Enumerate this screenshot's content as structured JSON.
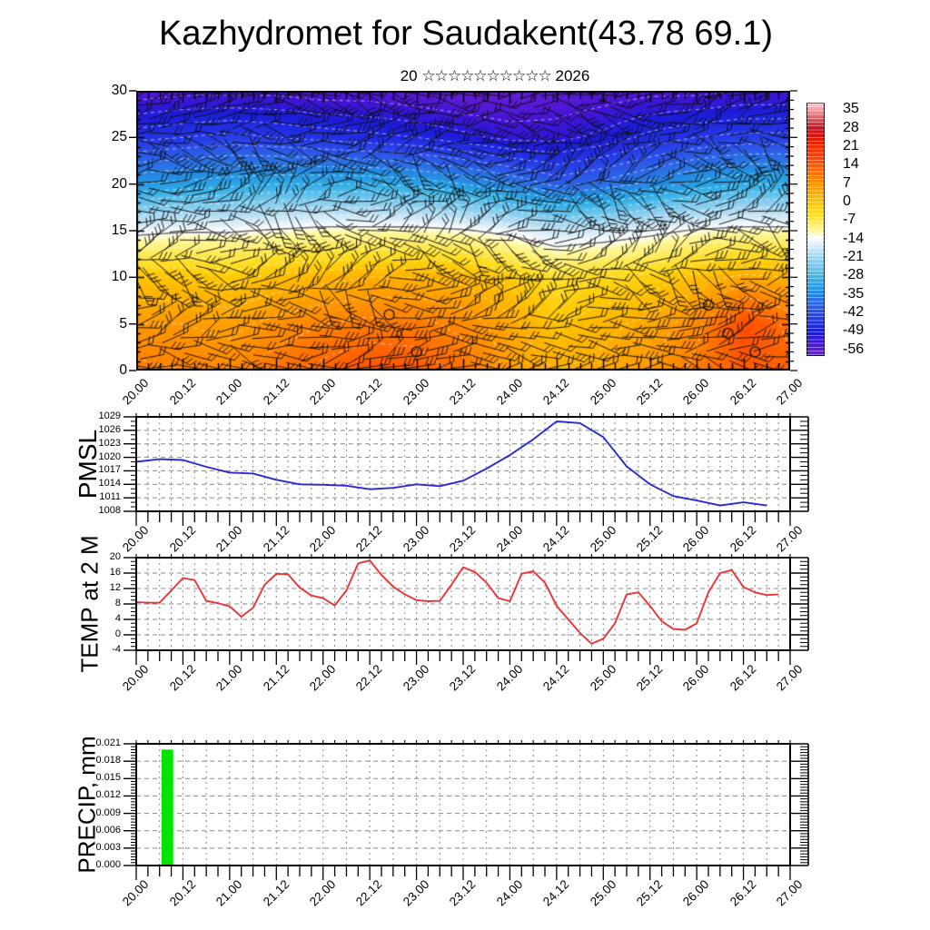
{
  "title": "Kazhydromet for Saudakent(43.78 69.1)",
  "subtitle": {
    "day": "20",
    "month_glyphs": "☆☆☆☆☆☆☆☆☆☆",
    "year": "2026"
  },
  "time_axis": {
    "labels": [
      "20.00",
      "20.12",
      "21.00",
      "21.12",
      "22.00",
      "22.12",
      "23.00",
      "23.12",
      "24.00",
      "24.12",
      "25.00",
      "25.12",
      "26.00",
      "26.12",
      "27.00"
    ],
    "start_hour": 0,
    "end_hour": 168,
    "label_step_hours": 12,
    "minor_tick_hours": 3
  },
  "colorbar": {
    "tick_labels": [
      "35",
      "28",
      "21",
      "14",
      "7",
      "0",
      "-7",
      "-14",
      "-21",
      "-28",
      "-35",
      "-42",
      "-49",
      "-56"
    ],
    "tick_values": [
      35,
      28,
      21,
      14,
      7,
      0,
      -7,
      -14,
      -21,
      -28,
      -35,
      -42,
      -49,
      -56
    ],
    "value_range": [
      37.5,
      -58.5
    ],
    "stops": [
      [
        37.5,
        "#f8ccd2"
      ],
      [
        35,
        "#f09aa2"
      ],
      [
        31,
        "#da4a55"
      ],
      [
        28,
        "#c81020"
      ],
      [
        25,
        "#d81508"
      ],
      [
        22,
        "#ee2800"
      ],
      [
        20,
        "#ff2e00"
      ],
      [
        16,
        "#ff4a00"
      ],
      [
        12,
        "#ff6a00"
      ],
      [
        8,
        "#ff8a00"
      ],
      [
        4,
        "#ffa800"
      ],
      [
        0,
        "#ffc400"
      ],
      [
        -4,
        "#ffdc20"
      ],
      [
        -8,
        "#ffec60"
      ],
      [
        -12,
        "#fffaaa"
      ],
      [
        -13.5,
        "#ffffff"
      ],
      [
        -15,
        "#f0f7fc"
      ],
      [
        -18,
        "#c8e6f6"
      ],
      [
        -22,
        "#96d2f0"
      ],
      [
        -26,
        "#62c2ec"
      ],
      [
        -30,
        "#30ade6"
      ],
      [
        -34,
        "#2491e2"
      ],
      [
        -38,
        "#2b6fe4"
      ],
      [
        -42,
        "#2b4fe8"
      ],
      [
        -46,
        "#2332e4"
      ],
      [
        -50,
        "#1c1cd8"
      ],
      [
        -54,
        "#4414d4"
      ],
      [
        -58.5,
        "#7020d8"
      ]
    ]
  },
  "chart_data": [
    {
      "id": "temperature_height_section",
      "type": "heatmap",
      "ylabel": "",
      "y_ticks": [
        0,
        5,
        10,
        15,
        20,
        25,
        30
      ],
      "levels": [
        0,
        5,
        10,
        15,
        20,
        25,
        30
      ],
      "time_hours": [
        0,
        12,
        24,
        36,
        48,
        60,
        72,
        84,
        96,
        108,
        120,
        132,
        144,
        156,
        168
      ],
      "values_by_level": [
        [
          10,
          9,
          8,
          11,
          13,
          15,
          14,
          11,
          5,
          3,
          4,
          6,
          10,
          14,
          13
        ],
        [
          6,
          6,
          5,
          7,
          9,
          10,
          10,
          8,
          4,
          0,
          2,
          4,
          8,
          16,
          11
        ],
        [
          0,
          0,
          -1,
          1,
          2,
          3,
          3,
          2,
          -1,
          -5,
          -3,
          -2,
          1,
          4,
          3
        ],
        [
          -15,
          -14,
          -14,
          -13,
          -12,
          -12,
          -12,
          -13,
          -15,
          -18,
          -17,
          -15,
          -13,
          -12,
          -12
        ],
        [
          -33,
          -32,
          -31,
          -30,
          -30,
          -30,
          -31,
          -33,
          -36,
          -40,
          -38,
          -35,
          -32,
          -30,
          -30
        ],
        [
          -46,
          -45,
          -44,
          -45,
          -46,
          -47,
          -48,
          -50,
          -52,
          -52,
          -50,
          -47,
          -45,
          -44,
          -44
        ],
        [
          -56,
          -55,
          -55,
          -55,
          -56,
          -56,
          -57,
          -58,
          -58,
          -57,
          -56,
          -55,
          -55,
          -54,
          -54
        ]
      ],
      "wind_barbs_overlay": true,
      "contour_values": [
        -54,
        -51,
        -48,
        -45,
        -42,
        -39,
        -36,
        -33,
        -30,
        -27,
        -24,
        -21,
        -18,
        -15,
        -12,
        -9,
        -6,
        -3,
        0,
        3,
        6,
        9,
        12
      ],
      "contour_highlight_value": -13.5,
      "calm_circles": [
        {
          "hour": 65,
          "level": 6
        },
        {
          "hour": 72,
          "level": 2
        },
        {
          "hour": 147,
          "level": 7
        },
        {
          "hour": 152,
          "level": 4
        },
        {
          "hour": 159,
          "level": 2
        }
      ]
    },
    {
      "id": "pmsl",
      "type": "line",
      "ylabel": "PMSL",
      "color": "#2a2ad4",
      "ylim": [
        1008,
        1029
      ],
      "y_ticks": [
        1008,
        1011,
        1014,
        1017,
        1020,
        1023,
        1026,
        1029
      ],
      "y_minor_step": 1,
      "grid_x_hours": 3,
      "x_start_hour": 0,
      "x_step_hours": 6,
      "values": [
        1019.0,
        1019.6,
        1019.4,
        1017.9,
        1016.6,
        1016.4,
        1015.0,
        1014.0,
        1013.9,
        1013.7,
        1012.9,
        1013.2,
        1014.0,
        1013.6,
        1014.8,
        1017.5,
        1020.5,
        1024.0,
        1028.0,
        1027.6,
        1024.5,
        1018.0,
        1014.0,
        1011.4,
        1010.4,
        1009.3,
        1010.0,
        1009.3
      ]
    },
    {
      "id": "temp2m",
      "type": "line",
      "ylabel": "TEMP at 2 M",
      "color": "#ee3333",
      "ylim": [
        -4,
        20
      ],
      "y_ticks": [
        -4,
        0,
        4,
        8,
        12,
        16,
        20
      ],
      "y_minor_step": 1,
      "grid_x_hours": 3,
      "x_start_hour": 0,
      "x_step_hours": 3,
      "values": [
        8.5,
        8.3,
        8.3,
        11.5,
        14.7,
        14.2,
        8.8,
        8.2,
        7.4,
        4.7,
        7.0,
        13.0,
        15.8,
        15.7,
        12.2,
        10.2,
        9.5,
        7.6,
        11.5,
        18.5,
        19.3,
        15.5,
        12.5,
        10.5,
        9.0,
        8.7,
        8.8,
        13.0,
        17.5,
        16.3,
        13.5,
        9.5,
        8.7,
        15.8,
        16.5,
        13.5,
        7.5,
        4.0,
        0.5,
        -2.3,
        -1.0,
        3.0,
        10.5,
        11.0,
        7.5,
        3.5,
        1.5,
        1.3,
        3.0,
        11.0,
        16.0,
        16.8,
        12.4,
        11.0,
        10.3,
        10.5
      ]
    },
    {
      "id": "precip",
      "type": "bar",
      "ylabel": "PRECIP, mm",
      "color": "#00e400",
      "ylim": [
        0,
        0.021
      ],
      "y_ticks": [
        0,
        0.003,
        0.006,
        0.009,
        0.012,
        0.015,
        0.018,
        0.021
      ],
      "y_tick_labels": [
        "0.000",
        "0.003",
        "0.006",
        "0.009",
        "0.012",
        "0.015",
        "0.018",
        "0.021"
      ],
      "y_minor_step": 0.0005,
      "grid_x_hours": 6,
      "bars": [
        {
          "start_hour": 6.5,
          "end_hour": 9.5,
          "value": 0.02
        }
      ]
    }
  ]
}
